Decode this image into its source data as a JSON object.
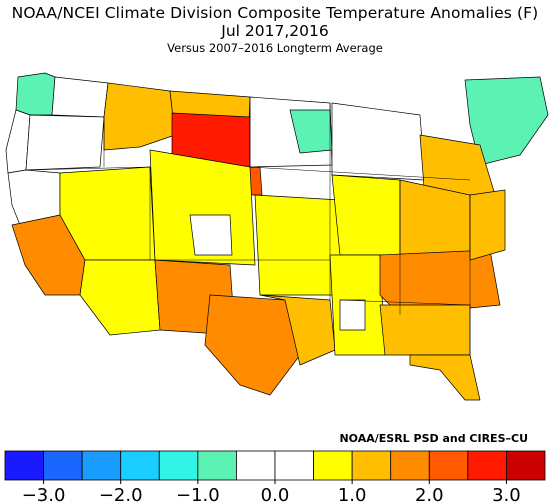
{
  "title": "NOAA/NCEI Climate Division Composite Temperature Anomalies (F)",
  "period": "Jul  2017,2016",
  "subtitle": "Versus 2007–2016 Longterm Average",
  "credit": "NOAA/ESRL PSD and CIRES–CU",
  "legend": {
    "bins": [
      {
        "min": -3.0,
        "max": -2.5,
        "color": "#1a1aff"
      },
      {
        "min": -2.5,
        "max": -2.0,
        "color": "#1a66ff"
      },
      {
        "min": -2.0,
        "max": -1.5,
        "color": "#1a9cff"
      },
      {
        "min": -1.5,
        "max": -1.0,
        "color": "#1acfff"
      },
      {
        "min": -1.0,
        "max": -0.5,
        "color": "#33f2e6"
      },
      {
        "min": -0.5,
        "max": 0.0,
        "color": "#5cf2b3"
      },
      {
        "min": 0.0,
        "max": 0.5,
        "color": "#ffffff"
      },
      {
        "min": 0.5,
        "max": 1.0,
        "color": "#ffffff"
      },
      {
        "min": 1.0,
        "max": 1.5,
        "color": "#ffff00"
      },
      {
        "min": 1.5,
        "max": 2.0,
        "color": "#ffbf00"
      },
      {
        "min": 2.0,
        "max": 2.5,
        "color": "#ff8c00"
      },
      {
        "min": 2.5,
        "max": 3.0,
        "color": "#ff5a00"
      },
      {
        "min": 3.0,
        "max": 3.5,
        "color": "#ff1a00"
      },
      {
        "min": 3.5,
        "max": 4.0,
        "color": "#cc0000"
      }
    ],
    "tick_labels": [
      "−3.0",
      "−2.0",
      "−1.0",
      "0.0",
      "1.0",
      "2.0",
      "3.0"
    ]
  },
  "map": {
    "region": "Contiguous United States",
    "coloring": "climate-division temperature anomaly"
  }
}
